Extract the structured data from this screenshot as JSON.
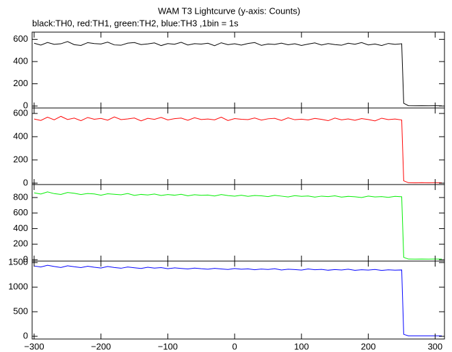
{
  "title": "WAM T3 Lightcurve (y-axis: Counts)",
  "subtitle": "black:TH0, red:TH1, green:TH2, blue:TH3 ,1bin = 1s",
  "x": [
    -300,
    -290,
    -280,
    -270,
    -260,
    -250,
    -240,
    -230,
    -220,
    -210,
    -200,
    -190,
    -180,
    -170,
    -160,
    -150,
    -140,
    -130,
    -120,
    -110,
    -100,
    -90,
    -80,
    -70,
    -60,
    -50,
    -40,
    -30,
    -20,
    -10,
    0,
    10,
    20,
    30,
    40,
    50,
    60,
    70,
    80,
    90,
    100,
    110,
    120,
    130,
    140,
    150,
    160,
    170,
    180,
    190,
    200,
    210,
    220,
    230,
    240,
    250,
    253,
    260,
    270,
    280,
    290,
    300,
    310
  ],
  "xlim": [
    -303,
    314
  ],
  "xticks": [
    {
      "value": -300,
      "label": "−300"
    },
    {
      "value": -200,
      "label": "−200"
    },
    {
      "value": -100,
      "label": "−100"
    },
    0,
    100,
    200,
    300
  ],
  "chart_data": [
    {
      "type": "line",
      "ylim": [
        -18,
        665
      ],
      "yticks": [
        0,
        200,
        400,
        600
      ],
      "series": [
        {
          "name": "TH0",
          "color": "#000000",
          "values": [
            565,
            548,
            572,
            555,
            560,
            580,
            552,
            545,
            570,
            562,
            558,
            575,
            550,
            547,
            566,
            571,
            553,
            559,
            568,
            544,
            562,
            556,
            573,
            549,
            561,
            557,
            565,
            543,
            569,
            552,
            560,
            548,
            563,
            571,
            546,
            558,
            554,
            566,
            551,
            560,
            545,
            557,
            568,
            549,
            562,
            553,
            547,
            565,
            556,
            571,
            550,
            558,
            544,
            563,
            555,
            560,
            25,
            3,
            2,
            3,
            2,
            3,
            2
          ]
        }
      ]
    },
    {
      "type": "line",
      "ylim": [
        -12,
        647
      ],
      "yticks": [
        0,
        200,
        400,
        600
      ],
      "series": [
        {
          "name": "TH1",
          "color": "#ff0000",
          "values": [
            552,
            540,
            568,
            545,
            575,
            548,
            560,
            538,
            565,
            550,
            557,
            542,
            570,
            547,
            553,
            561,
            536,
            558,
            549,
            566,
            544,
            555,
            560,
            541,
            563,
            548,
            552,
            545,
            568,
            539,
            556,
            550,
            547,
            561,
            543,
            554,
            558,
            540,
            562,
            546,
            551,
            544,
            557,
            549,
            538,
            560,
            545,
            553,
            541,
            556,
            548,
            536,
            559,
            547,
            552,
            544,
            20,
            4,
            3,
            4,
            3,
            4,
            3
          ]
        }
      ]
    },
    {
      "type": "line",
      "ylim": [
        -18,
        967
      ],
      "yticks": [
        0,
        200,
        400,
        600,
        800
      ],
      "series": [
        {
          "name": "TH2",
          "color": "#00ee00",
          "values": [
            860,
            845,
            872,
            850,
            840,
            865,
            855,
            838,
            852,
            846,
            830,
            848,
            842,
            835,
            851,
            828,
            840,
            833,
            845,
            826,
            838,
            830,
            842,
            822,
            836,
            828,
            832,
            820,
            838,
            825,
            818,
            830,
            815,
            826,
            822,
            812,
            828,
            818,
            808,
            824,
            815,
            820,
            806,
            818,
            812,
            822,
            805,
            815,
            810,
            800,
            818,
            808,
            812,
            802,
            815,
            810,
            30,
            8,
            7,
            8,
            7,
            8,
            7
          ]
        }
      ]
    },
    {
      "type": "line",
      "ylim": [
        -55,
        1530
      ],
      "yticks": [
        0,
        500,
        1000,
        1500
      ],
      "series": [
        {
          "name": "TH3",
          "color": "#0000ff",
          "values": [
            1430,
            1410,
            1445,
            1420,
            1400,
            1435,
            1415,
            1398,
            1425,
            1405,
            1390,
            1420,
            1400,
            1385,
            1410,
            1395,
            1380,
            1405,
            1388,
            1398,
            1375,
            1392,
            1380,
            1370,
            1388,
            1375,
            1365,
            1382,
            1370,
            1360,
            1378,
            1365,
            1372,
            1355,
            1368,
            1360,
            1375,
            1350,
            1365,
            1358,
            1348,
            1370,
            1355,
            1362,
            1345,
            1358,
            1350,
            1365,
            1342,
            1355,
            1348,
            1360,
            1340,
            1352,
            1345,
            1350,
            40,
            10,
            9,
            10,
            9,
            10,
            9
          ]
        }
      ]
    }
  ]
}
